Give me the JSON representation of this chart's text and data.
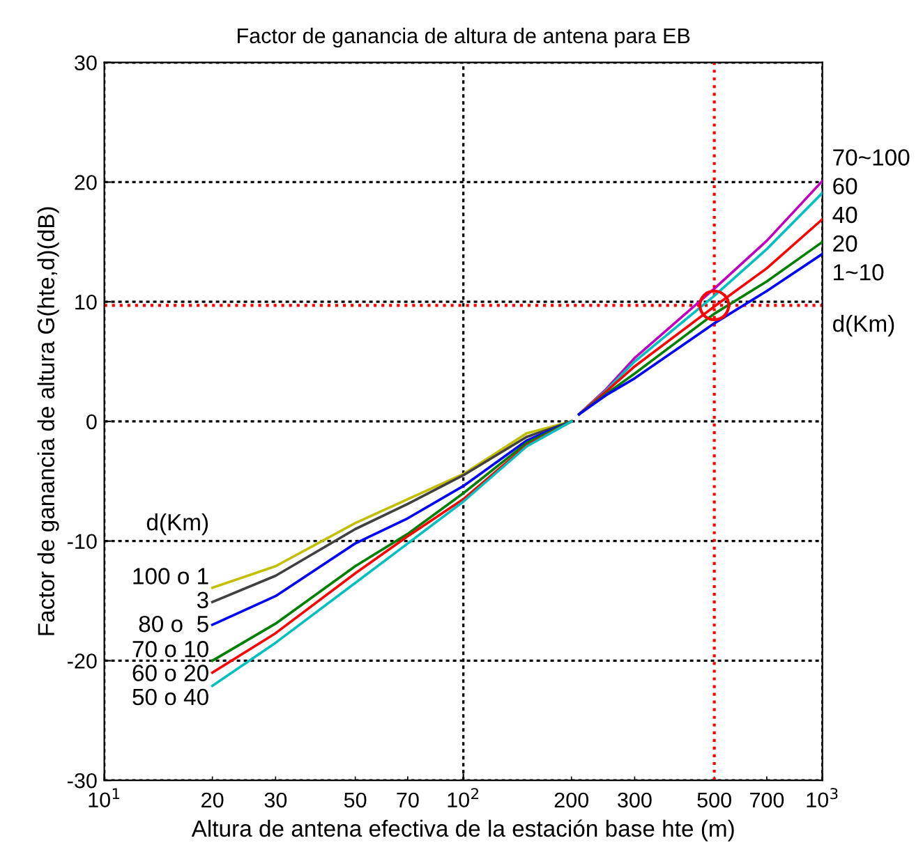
{
  "chart_data": {
    "type": "line",
    "title": "Factor de ganancia de altura de antena para EB",
    "xlabel": "Altura de antena efectiva de la estación base hte (m)",
    "ylabel": "Factor de ganancia de altura G(hte,d)(dB)",
    "log": "x",
    "xlim": [
      10,
      1000
    ],
    "ylim": [
      -30,
      30
    ],
    "xticks": [
      {
        "value": 10,
        "label": "10$^{1}$"
      },
      20,
      30,
      50,
      70,
      {
        "value": 100,
        "label": "10$^{2}$"
      },
      200,
      300,
      500,
      700,
      {
        "value": 1000,
        "label": "10$^{3}$"
      }
    ],
    "yticks": [
      -30,
      -20,
      -10,
      0,
      10,
      20,
      30
    ],
    "grid": true,
    "line_style": "solid",
    "annotations": [
      "d(Km)",
      "d(Km)"
    ],
    "ref_lines": [
      {
        "axis": "x",
        "value": 500,
        "color": "#ff0000",
        "line_style": "dotted"
      },
      {
        "axis": "y",
        "value": 9.7,
        "color": "#ff0000",
        "line_style": "dotted"
      }
    ],
    "series": [
      {
        "name": "100 o 1",
        "color": "#c0c000",
        "x": [
          20,
          30,
          50,
          70,
          100,
          150,
          200
        ],
        "values": [
          -13.9,
          -12.1,
          -8.5,
          -6.5,
          -4.4,
          -1.0,
          0
        ]
      },
      {
        "name": "3",
        "color": "#404040",
        "x": [
          20,
          30,
          50,
          70,
          100,
          150,
          200
        ],
        "values": [
          -15.1,
          -12.9,
          -9.0,
          -6.9,
          -4.5,
          -1.3,
          0
        ]
      },
      {
        "name": "80 o  5",
        "color": "#0000ff",
        "x": [
          20,
          30,
          50,
          70,
          100,
          150,
          200
        ],
        "values": [
          -17.0,
          -14.6,
          -10.2,
          -8.1,
          -5.4,
          -1.6,
          0
        ]
      },
      {
        "name": "70 o 10",
        "color": "#008000",
        "x": [
          20,
          30,
          50,
          70,
          100,
          150,
          200
        ],
        "values": [
          -20.0,
          -16.9,
          -12.1,
          -9.4,
          -6.0,
          -1.8,
          0
        ]
      },
      {
        "name": "60 o 20",
        "color": "#ff0000",
        "x": [
          20,
          30,
          50,
          70,
          100,
          150,
          200
        ],
        "values": [
          -21.0,
          -17.7,
          -12.7,
          -9.6,
          -6.5,
          -2.0,
          0
        ]
      },
      {
        "name": "50 o 40",
        "color": "#00c0c0",
        "x": [
          20,
          30,
          50,
          70,
          100,
          150,
          200
        ],
        "values": [
          -22.1,
          -18.5,
          -13.5,
          -10.2,
          -6.7,
          -2.1,
          0
        ]
      },
      {
        "name": "70~100",
        "color": "#c000c0",
        "x": [
          210,
          250,
          300,
          500,
          700,
          1000
        ],
        "values": [
          0.6,
          2.7,
          5.3,
          11.1,
          15.1,
          20.1
        ]
      },
      {
        "name": "60",
        "color": "#00c0c0",
        "x": [
          210,
          250,
          300,
          500,
          700,
          1000
        ],
        "values": [
          0.6,
          2.6,
          5.0,
          10.5,
          14.4,
          19.1
        ]
      },
      {
        "name": "40",
        "color": "#ff0000",
        "x": [
          210,
          250,
          300,
          500,
          700,
          1000
        ],
        "values": [
          0.6,
          2.5,
          4.6,
          9.6,
          12.8,
          16.9
        ]
      },
      {
        "name": "20",
        "color": "#008000",
        "x": [
          210,
          250,
          300,
          500,
          700,
          1000
        ],
        "values": [
          0.6,
          2.3,
          4.0,
          9.0,
          11.7,
          15.0
        ]
      },
      {
        "name": "1~10",
        "color": "#0000ff",
        "x": [
          210,
          250,
          300,
          500,
          700,
          1000
        ],
        "values": [
          0.6,
          2.2,
          3.6,
          8.2,
          10.9,
          14.0
        ]
      },
      {
        "type": "scatter",
        "color": "#ff0000",
        "marker": "circle",
        "x": [
          500
        ],
        "values": [
          9.7
        ]
      }
    ]
  }
}
